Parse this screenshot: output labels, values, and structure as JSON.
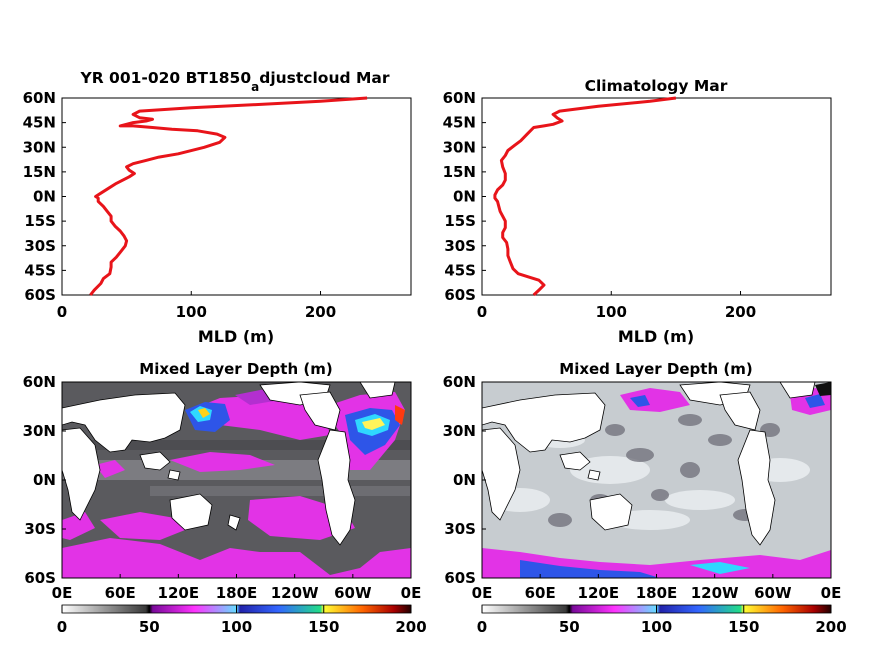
{
  "figure": {
    "background": "#ffffff",
    "line_color": "#e8141a",
    "axis_color": "#000000",
    "land_color": "#ffffff",
    "coast_color": "#000000"
  },
  "chart_data": [
    {
      "id": "mld-profile-model",
      "type": "line",
      "title": "YR 001-020 BT1850",
      "title_subscript": "a",
      "title_suffix": "djustcloud Mar",
      "xlabel": "MLD (m)",
      "ylabel": "",
      "xlim": [
        0,
        270
      ],
      "ylim": [
        -60,
        60
      ],
      "xticks": [
        0,
        100,
        200
      ],
      "xtick_labels": [
        "0",
        "100",
        "200"
      ],
      "yticks": [
        60,
        45,
        30,
        15,
        0,
        -15,
        -30,
        -45,
        -60
      ],
      "ytick_labels": [
        "60N",
        "45N",
        "30N",
        "15N",
        "0N",
        "15S",
        "30S",
        "45S",
        "60S"
      ],
      "grid": false,
      "series": [
        {
          "points": [
            [
              22,
              -60
            ],
            [
              25,
              -57
            ],
            [
              30,
              -53
            ],
            [
              32,
              -50
            ],
            [
              37,
              -47
            ],
            [
              38,
              -43
            ],
            [
              38,
              -40
            ],
            [
              42,
              -37
            ],
            [
              46,
              -33
            ],
            [
              49,
              -30
            ],
            [
              50,
              -27
            ],
            [
              48,
              -24
            ],
            [
              45,
              -21
            ],
            [
              41,
              -18
            ],
            [
              38,
              -15
            ],
            [
              38,
              -12
            ],
            [
              35,
              -9
            ],
            [
              32,
              -6
            ],
            [
              28,
              -3
            ],
            [
              28,
              -1
            ],
            [
              26,
              0
            ],
            [
              30,
              2
            ],
            [
              36,
              5
            ],
            [
              42,
              8
            ],
            [
              52,
              12
            ],
            [
              56,
              14
            ],
            [
              52,
              16
            ],
            [
              50,
              18
            ],
            [
              55,
              20
            ],
            [
              65,
              22
            ],
            [
              75,
              24
            ],
            [
              90,
              26
            ],
            [
              110,
              30
            ],
            [
              122,
              33
            ],
            [
              126,
              36
            ],
            [
              120,
              38
            ],
            [
              105,
              40
            ],
            [
              85,
              41
            ],
            [
              70,
              42
            ],
            [
              55,
              43
            ],
            [
              45,
              43
            ],
            [
              55,
              45
            ],
            [
              65,
              46
            ],
            [
              70,
              47
            ],
            [
              60,
              48
            ],
            [
              55,
              50
            ],
            [
              60,
              52
            ],
            [
              100,
              54
            ],
            [
              150,
              56
            ],
            [
              200,
              58
            ],
            [
              236,
              60
            ]
          ]
        }
      ]
    },
    {
      "id": "mld-profile-climatology",
      "type": "line",
      "title": "Climatology Mar",
      "xlabel": "MLD (m)",
      "ylabel": "",
      "xlim": [
        0,
        270
      ],
      "ylim": [
        -60,
        60
      ],
      "xticks": [
        0,
        100,
        200
      ],
      "xtick_labels": [
        "0",
        "100",
        "200"
      ],
      "yticks": [
        60,
        45,
        30,
        15,
        0,
        -15,
        -30,
        -45,
        -60
      ],
      "ytick_labels": [
        "60N",
        "45N",
        "30N",
        "15N",
        "0N",
        "15S",
        "30S",
        "45S",
        "60S"
      ],
      "grid": false,
      "series": [
        {
          "points": [
            [
              40,
              -60
            ],
            [
              44,
              -57
            ],
            [
              48,
              -54
            ],
            [
              44,
              -51
            ],
            [
              36,
              -49
            ],
            [
              28,
              -47
            ],
            [
              24,
              -44
            ],
            [
              22,
              -40
            ],
            [
              20,
              -36
            ],
            [
              20,
              -32
            ],
            [
              19,
              -28
            ],
            [
              16,
              -25
            ],
            [
              16,
              -22
            ],
            [
              18,
              -19
            ],
            [
              18,
              -15
            ],
            [
              16,
              -12
            ],
            [
              14,
              -9
            ],
            [
              13,
              -6
            ],
            [
              12,
              -3
            ],
            [
              10,
              -1
            ],
            [
              10,
              1
            ],
            [
              12,
              4
            ],
            [
              16,
              7
            ],
            [
              18,
              10
            ],
            [
              18,
              14
            ],
            [
              16,
              18
            ],
            [
              15,
              22
            ],
            [
              18,
              25
            ],
            [
              20,
              28
            ],
            [
              25,
              31
            ],
            [
              30,
              34
            ],
            [
              35,
              38
            ],
            [
              40,
              42
            ],
            [
              48,
              43
            ],
            [
              55,
              44
            ],
            [
              62,
              46
            ],
            [
              58,
              48
            ],
            [
              55,
              50
            ],
            [
              60,
              52
            ],
            [
              90,
              55
            ],
            [
              130,
              58
            ],
            [
              150,
              60
            ]
          ]
        }
      ]
    },
    {
      "id": "mld-map-model",
      "type": "heatmap",
      "title": "Mixed Layer Depth (m)",
      "xtick_labels": [
        "0E",
        "60E",
        "120E",
        "180E",
        "120W",
        "60W",
        "0E"
      ],
      "ytick_labels": [
        "60N",
        "30N",
        "0N",
        "30S",
        "60S"
      ],
      "colorbar": {
        "ticks": [
          "0",
          "50",
          "100",
          "150",
          "200"
        ],
        "range": [
          0,
          200
        ]
      }
    },
    {
      "id": "mld-map-climatology",
      "type": "heatmap",
      "title": "Mixed Layer Depth (m)",
      "xtick_labels": [
        "0E",
        "60E",
        "120E",
        "180E",
        "120W",
        "60W",
        "0E"
      ],
      "ytick_labels": [
        "60N",
        "30N",
        "0N",
        "30S",
        "60S"
      ],
      "colorbar": {
        "ticks": [
          "0",
          "50",
          "100",
          "150",
          "200"
        ],
        "range": [
          0,
          200
        ]
      }
    }
  ]
}
